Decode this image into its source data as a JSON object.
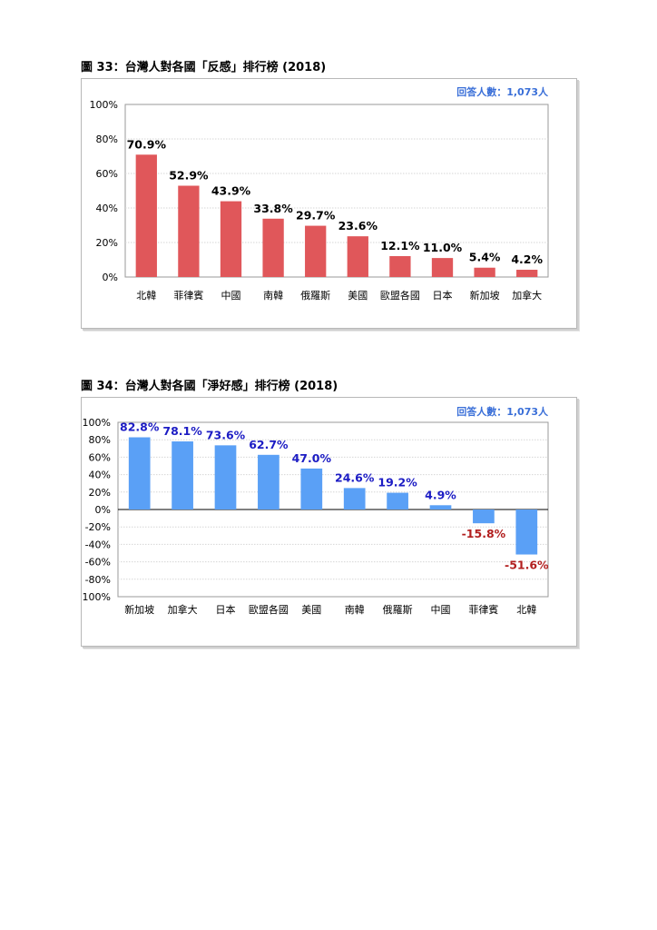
{
  "figures": [
    {
      "title": "圖 33：台灣人對各國「反感」排行榜  (2018)"
    },
    {
      "title": "圖 34：台灣人對各國「淨好感」排行榜  (2018)"
    }
  ],
  "colors": {
    "negative_bar": "#e0575a",
    "favorable_bar": "#5aa0f6",
    "positive_label": "#1c1cc4",
    "negative_label": "#b21f1f",
    "respondents_note": "#3a6fd8"
  },
  "chart_data": [
    {
      "type": "bar",
      "title": "",
      "note": "回答人數：1,073人",
      "categories": [
        "北韓",
        "菲律賓",
        "中國",
        "南韓",
        "俄羅斯",
        "美國",
        "歐盟各國",
        "日本",
        "新加坡",
        "加拿大"
      ],
      "values": [
        70.9,
        52.9,
        43.9,
        33.8,
        29.7,
        23.6,
        12.1,
        11.0,
        5.4,
        4.2
      ],
      "data_labels": [
        "70.9%",
        "52.9%",
        "43.9%",
        "33.8%",
        "29.7%",
        "23.6%",
        "12.1%",
        "11.0%",
        "5.4%",
        "4.2%"
      ],
      "ylim": [
        0,
        100
      ],
      "yticks": [
        "0%",
        "20%",
        "40%",
        "60%",
        "80%",
        "100%"
      ],
      "grid": true,
      "xlabel": "",
      "ylabel": ""
    },
    {
      "type": "bar",
      "title": "",
      "note": "回答人數：1,073人",
      "categories": [
        "新加坡",
        "加拿大",
        "日本",
        "歐盟各國",
        "美國",
        "南韓",
        "俄羅斯",
        "中國",
        "菲律賓",
        "北韓"
      ],
      "values": [
        82.8,
        78.1,
        73.6,
        62.7,
        47.0,
        24.6,
        19.2,
        4.9,
        -15.8,
        -51.6
      ],
      "data_labels": [
        "82.8%",
        "78.1%",
        "73.6%",
        "62.7%",
        "47.0%",
        "24.6%",
        "19.2%",
        "4.9%",
        "-15.8%",
        "-51.6%"
      ],
      "ylim": [
        -100,
        100
      ],
      "yticks": [
        "-100%",
        "-80%",
        "-60%",
        "-40%",
        "-20%",
        "0%",
        "20%",
        "40%",
        "60%",
        "80%",
        "100%"
      ],
      "grid": true,
      "xlabel": "",
      "ylabel": ""
    }
  ]
}
